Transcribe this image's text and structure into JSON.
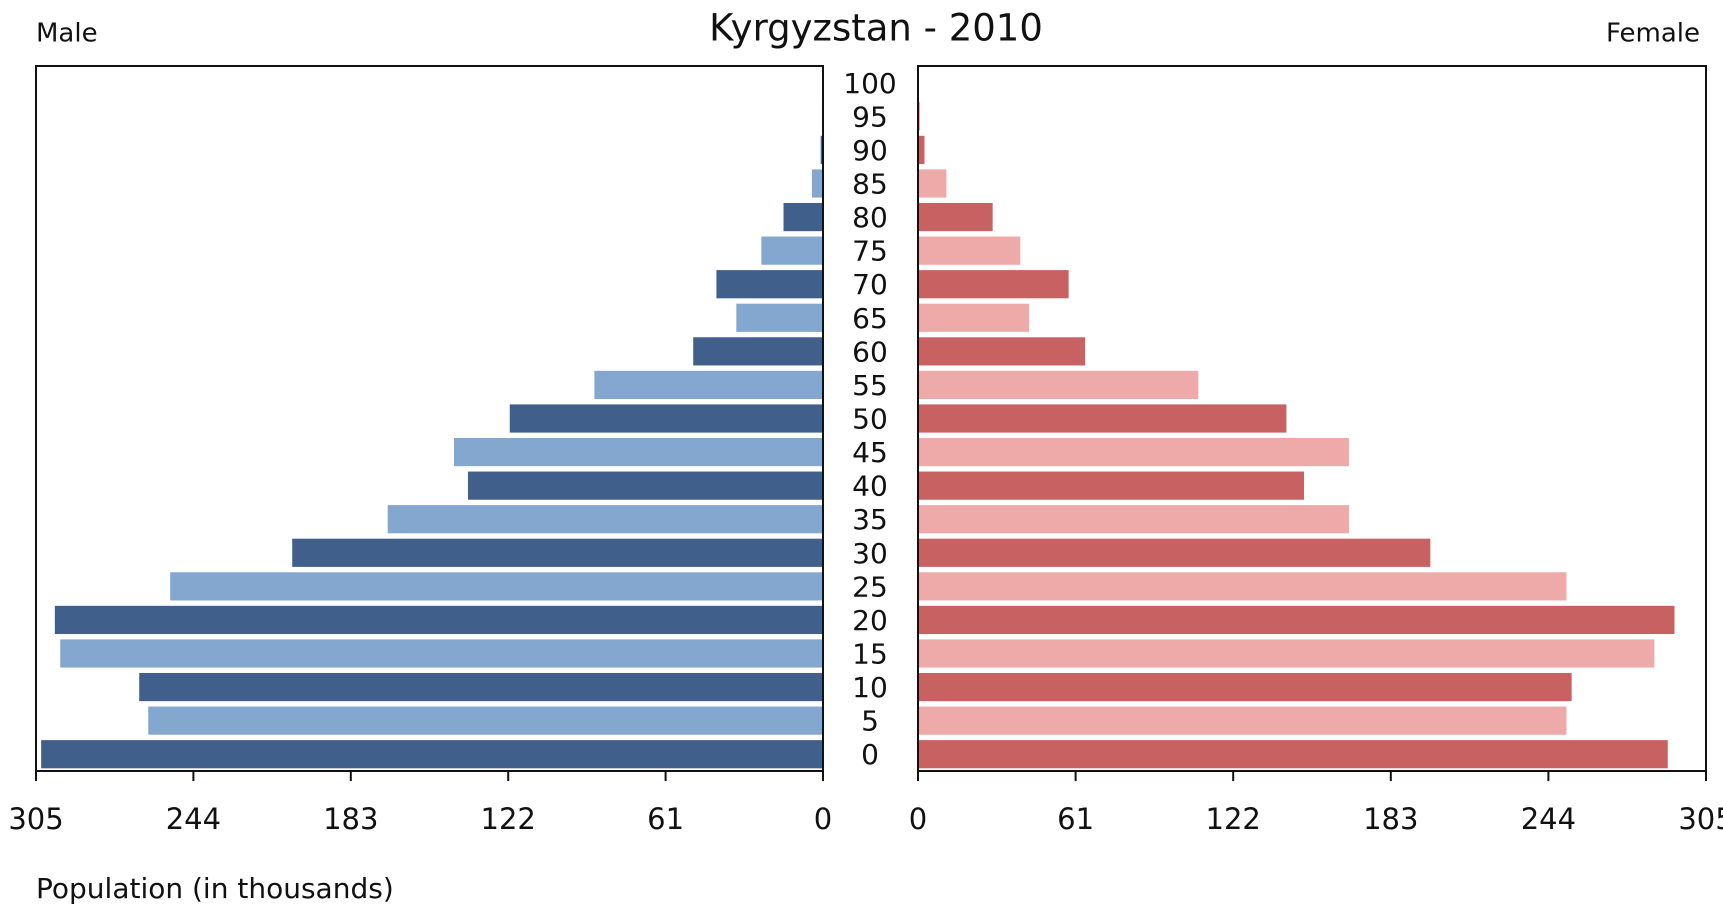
{
  "chart_data": {
    "type": "pyramid",
    "title": "Kyrgyzstan - 2010",
    "xlabel": "Population (in thousands)",
    "categories": [
      "0",
      "5",
      "10",
      "15",
      "20",
      "25",
      "30",
      "35",
      "40",
      "45",
      "50",
      "55",
      "60",
      "65",
      "70",
      "75",
      "80",
      "85",
      "90",
      "95",
      "100"
    ],
    "series": [
      {
        "name": "Male",
        "colors": [
          "#405f8a",
          "#84a7d0"
        ],
        "values": [
          303,
          261.5,
          265,
          295.6,
          297.7,
          253,
          205.7,
          168.7,
          137.6,
          143,
          121.4,
          88.6,
          50.3,
          33.6,
          41.3,
          23.9,
          15.3,
          4.3,
          0.9,
          0.4,
          0.2
        ]
      },
      {
        "name": "Female",
        "colors": [
          "#c86161",
          "#eea9a9"
        ],
        "values": [
          290.2,
          251,
          253,
          285,
          292.8,
          251,
          198.3,
          166.8,
          149.4,
          166.8,
          142.6,
          108.5,
          64.7,
          43,
          58.3,
          39.6,
          28.9,
          11,
          2.5,
          0.8,
          0.3
        ]
      }
    ],
    "xlim": [
      0,
      305
    ],
    "xticks": [
      0,
      61,
      122,
      183,
      244,
      305
    ]
  }
}
